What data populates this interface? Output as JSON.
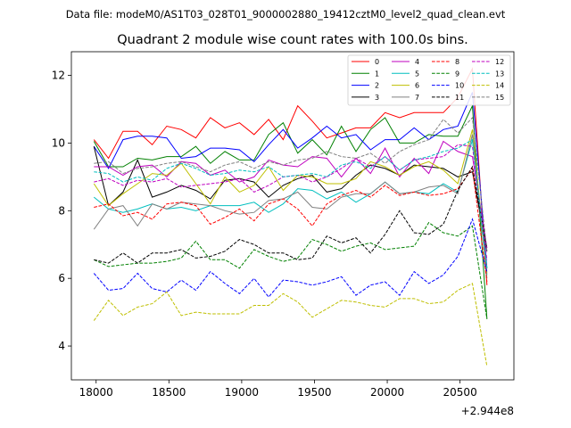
{
  "chart_data": {
    "type": "line",
    "suptitle": "Data file: modeM0/AS1T03_028T01_9000002880_19412cztM0_level2_quad_clean.evt",
    "title": "Quadrant 2 module wise count rates with 100.0s bins.",
    "xlabel": "",
    "ylabel": "",
    "x_offset_label": "+2.944e8",
    "xlim": [
      17830,
      20870
    ],
    "ylim": [
      3.0,
      12.7
    ],
    "xticks": [
      18000,
      18500,
      19000,
      19500,
      20000,
      20500
    ],
    "yticks": [
      4,
      6,
      8,
      10,
      12
    ],
    "x": [
      17985,
      18085,
      18185,
      18285,
      18385,
      18485,
      18585,
      18685,
      18785,
      18885,
      18985,
      19085,
      19185,
      19285,
      19385,
      19485,
      19585,
      19685,
      19785,
      19885,
      19985,
      20085,
      20185,
      20285,
      20385,
      20485,
      20585,
      20685
    ],
    "series": [
      {
        "name": "0",
        "color": "#ff0000",
        "dash": "solid",
        "values": [
          10.1,
          9.55,
          10.35,
          10.35,
          9.95,
          10.5,
          10.4,
          10.15,
          10.75,
          10.45,
          10.6,
          10.25,
          10.7,
          10.1,
          11.1,
          10.65,
          10.15,
          10.3,
          10.45,
          10.45,
          10.9,
          10.75,
          10.9,
          10.9,
          10.9,
          11.35,
          12.2,
          5.8
        ]
      },
      {
        "name": "1",
        "color": "#008000",
        "dash": "solid",
        "values": [
          10.05,
          9.3,
          9.3,
          9.55,
          9.5,
          9.6,
          9.6,
          9.9,
          9.4,
          9.75,
          9.5,
          9.5,
          10.25,
          10.6,
          9.7,
          10.1,
          9.65,
          10.5,
          9.75,
          10.4,
          10.75,
          10.0,
          10.0,
          10.25,
          10.2,
          10.2,
          11.1,
          4.8
        ]
      },
      {
        "name": "2",
        "color": "#0000ff",
        "dash": "solid",
        "values": [
          9.9,
          9.25,
          10.1,
          10.2,
          10.2,
          10.15,
          9.55,
          9.6,
          9.85,
          9.85,
          9.8,
          9.45,
          9.95,
          10.4,
          9.85,
          10.15,
          10.5,
          10.15,
          10.25,
          9.8,
          10.1,
          10.1,
          10.45,
          10.1,
          10.4,
          10.5,
          11.5,
          6.3
        ]
      },
      {
        "name": "3",
        "color": "#000000",
        "dash": "solid",
        "values": [
          9.9,
          8.15,
          8.55,
          9.5,
          8.4,
          8.55,
          8.75,
          8.6,
          8.35,
          8.9,
          8.95,
          8.85,
          8.4,
          8.75,
          8.95,
          9.05,
          8.55,
          8.65,
          9.05,
          9.35,
          9.25,
          9.05,
          9.35,
          9.3,
          9.25,
          9.0,
          9.15,
          6.8
        ]
      },
      {
        "name": "4",
        "color": "#bf00bf",
        "dash": "solid",
        "values": [
          9.3,
          9.3,
          9.05,
          9.3,
          9.35,
          9.0,
          9.45,
          9.4,
          9.05,
          9.2,
          8.85,
          9.0,
          9.5,
          9.35,
          9.3,
          9.6,
          9.55,
          9.0,
          9.55,
          9.1,
          9.85,
          9.0,
          9.55,
          9.1,
          10.05,
          9.75,
          9.6,
          6.9
        ]
      },
      {
        "name": "5",
        "color": "#00bfbf",
        "dash": "solid",
        "values": [
          8.4,
          8.05,
          7.95,
          8.05,
          8.2,
          8.05,
          8.1,
          8.0,
          8.15,
          8.15,
          8.15,
          8.25,
          7.95,
          8.2,
          8.65,
          8.6,
          8.35,
          8.55,
          8.25,
          8.5,
          8.85,
          8.5,
          8.55,
          8.5,
          8.8,
          8.55,
          10.1,
          6.1
        ]
      },
      {
        "name": "6",
        "color": "#bfbf00",
        "dash": "solid",
        "values": [
          8.8,
          8.15,
          8.5,
          8.8,
          9.1,
          9.05,
          9.4,
          8.8,
          8.2,
          9.0,
          8.55,
          8.75,
          9.3,
          8.6,
          9.05,
          9.0,
          8.8,
          8.8,
          8.95,
          9.45,
          9.3,
          9.05,
          9.3,
          9.45,
          9.2,
          8.8,
          10.4,
          6.15
        ]
      },
      {
        "name": "7",
        "color": "#808080",
        "dash": "solid",
        "values": [
          7.45,
          8.05,
          8.15,
          7.55,
          8.2,
          8.05,
          8.25,
          8.2,
          8.15,
          8.0,
          7.9,
          7.95,
          8.3,
          8.35,
          8.55,
          8.1,
          8.05,
          8.4,
          8.5,
          8.5,
          8.85,
          8.5,
          8.55,
          8.7,
          8.75,
          8.5,
          10.25,
          6.0
        ]
      },
      {
        "name": "8",
        "color": "#ff0000",
        "dash": "dashed",
        "values": [
          8.1,
          8.2,
          7.85,
          7.95,
          7.75,
          8.2,
          8.25,
          8.15,
          7.6,
          7.8,
          8.05,
          7.7,
          8.2,
          8.35,
          8.05,
          7.55,
          8.2,
          8.45,
          8.6,
          8.4,
          8.75,
          8.45,
          8.55,
          8.45,
          8.5,
          8.65,
          9.25,
          5.9
        ]
      },
      {
        "name": "9",
        "color": "#008000",
        "dash": "dashed",
        "values": [
          6.55,
          6.35,
          6.4,
          6.45,
          6.45,
          6.5,
          6.6,
          7.1,
          6.55,
          6.55,
          6.3,
          6.85,
          6.65,
          6.5,
          6.6,
          7.15,
          7.0,
          6.8,
          6.95,
          7.05,
          6.85,
          6.9,
          6.95,
          7.65,
          7.35,
          7.25,
          7.55,
          4.8
        ]
      },
      {
        "name": "10",
        "color": "#0000ff",
        "dash": "dashed",
        "values": [
          6.15,
          5.65,
          5.7,
          6.15,
          5.7,
          5.6,
          5.95,
          5.65,
          6.2,
          5.85,
          5.55,
          6.0,
          5.45,
          5.95,
          5.9,
          5.8,
          5.9,
          6.05,
          5.5,
          5.8,
          5.9,
          5.5,
          6.2,
          5.85,
          6.1,
          6.65,
          7.75,
          6.2
        ]
      },
      {
        "name": "11",
        "color": "#000000",
        "dash": "dashed",
        "values": [
          6.55,
          6.45,
          6.75,
          6.45,
          6.75,
          6.75,
          6.85,
          6.6,
          6.65,
          6.8,
          7.15,
          7.0,
          6.75,
          6.75,
          6.55,
          6.6,
          7.25,
          7.05,
          7.2,
          6.75,
          7.3,
          8.0,
          7.35,
          7.3,
          7.6,
          8.6,
          9.3,
          6.9
        ]
      },
      {
        "name": "12",
        "color": "#bf00bf",
        "dash": "dashed",
        "values": [
          8.85,
          8.95,
          8.75,
          8.9,
          8.85,
          8.95,
          8.7,
          8.75,
          8.8,
          8.85,
          8.95,
          8.55,
          8.75,
          9.0,
          9.05,
          8.85,
          9.0,
          9.25,
          9.55,
          9.3,
          9.6,
          9.2,
          9.5,
          9.55,
          9.6,
          9.95,
          9.9,
          6.55
        ]
      },
      {
        "name": "13",
        "color": "#00bfbf",
        "dash": "dashed",
        "values": [
          9.15,
          9.1,
          8.85,
          9.0,
          8.9,
          9.25,
          9.4,
          9.25,
          9.05,
          9.1,
          9.2,
          9.15,
          9.3,
          9.0,
          9.05,
          9.1,
          9.0,
          9.35,
          9.45,
          9.25,
          9.6,
          9.2,
          9.5,
          9.6,
          9.75,
          9.85,
          10.1,
          6.3
        ]
      },
      {
        "name": "14",
        "color": "#bfbf00",
        "dash": "dashed",
        "values": [
          4.75,
          5.35,
          4.9,
          5.15,
          5.25,
          5.6,
          4.9,
          5.0,
          4.95,
          4.95,
          4.95,
          5.2,
          5.2,
          5.55,
          5.3,
          4.85,
          5.1,
          5.35,
          5.3,
          5.2,
          5.15,
          5.4,
          5.4,
          5.25,
          5.3,
          5.65,
          5.85,
          3.4
        ]
      },
      {
        "name": "15",
        "color": "#808080",
        "dash": "dashed",
        "values": [
          9.4,
          9.45,
          9.1,
          9.25,
          9.3,
          9.4,
          9.45,
          9.3,
          9.15,
          9.35,
          9.45,
          9.25,
          9.45,
          9.35,
          9.5,
          9.55,
          9.75,
          9.6,
          9.55,
          9.7,
          9.4,
          9.75,
          9.95,
          10.1,
          10.7,
          10.3,
          10.75,
          6.8
        ]
      }
    ]
  }
}
